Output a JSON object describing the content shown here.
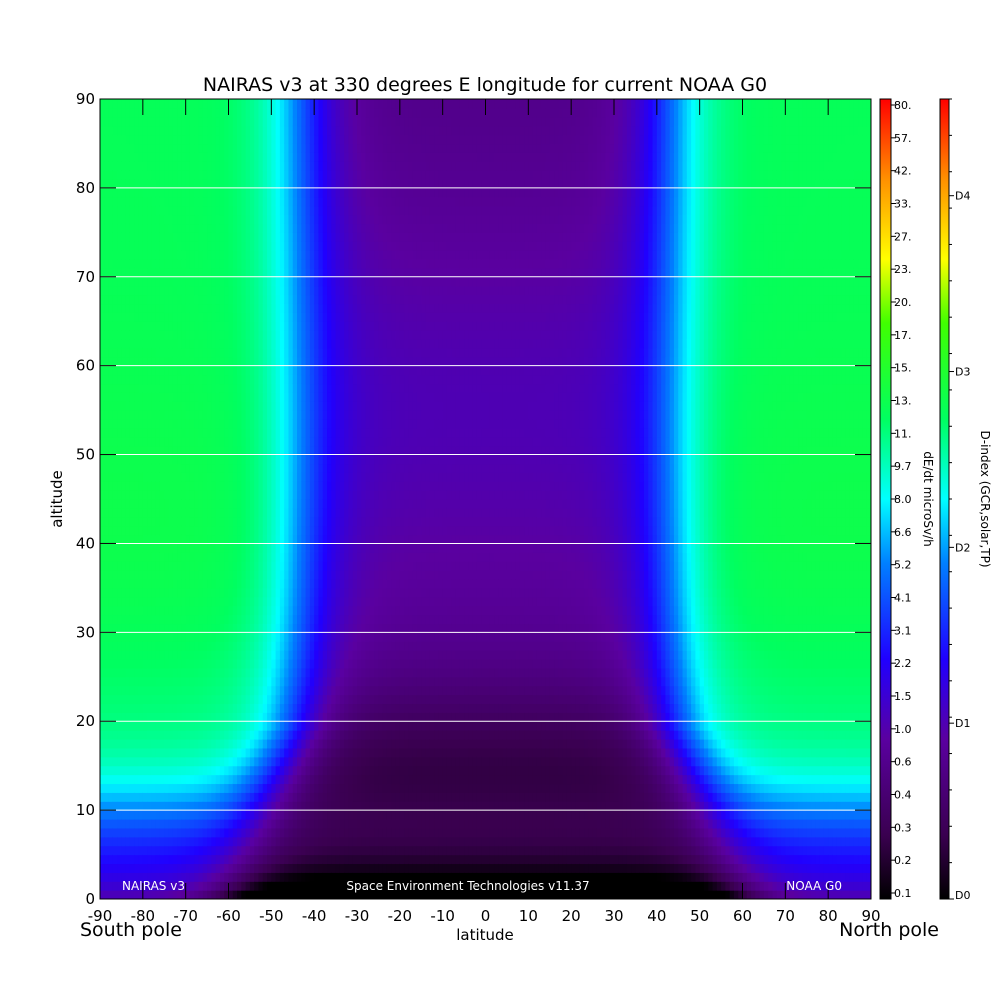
{
  "chart_data": {
    "type": "heatmap",
    "title": "NAIRAS v3 at 330 degrees E longitude for current NOAA G0",
    "xlabel": "latitude",
    "ylabel": "altitude",
    "xlim": [
      -90,
      90
    ],
    "ylim": [
      0,
      90
    ],
    "x_ticks": [
      "-90",
      "-80",
      "-70",
      "-60",
      "-50",
      "-40",
      "-30",
      "-20",
      "-10",
      "0",
      "10",
      "20",
      "30",
      "40",
      "50",
      "60",
      "70",
      "80",
      "90"
    ],
    "y_ticks": [
      "0",
      "10",
      "20",
      "30",
      "40",
      "50",
      "60",
      "70",
      "80",
      "90"
    ],
    "horizontal_gridlines_at": [
      10,
      20,
      30,
      40,
      50,
      60,
      70,
      80
    ],
    "x_end_labels": {
      "left": "South pole",
      "right": "North pole"
    },
    "footer_labels": {
      "left": "NAIRAS v3",
      "center": "Space Environment Technologies v11.37",
      "right": "NOAA G0"
    },
    "colorbar_dose": {
      "label": "dE/dt microSv/h",
      "ticks": [
        "0.1",
        "0.2",
        "0.3",
        "0.4",
        "0.6",
        "1.0",
        "1.5",
        "2.2",
        "3.1",
        "4.1",
        "5.2",
        "6.6",
        "8.0",
        "9.7",
        "11.",
        "13.",
        "15.",
        "17.",
        "20.",
        "23.",
        "27.",
        "33.",
        "42.",
        "57.",
        "80."
      ]
    },
    "colorbar_dindex": {
      "label": "D-index (GCR,solar,TP)",
      "ticks": [
        "D0",
        "D1",
        "D2",
        "D3",
        "D4"
      ],
      "tick_levels": [
        0,
        1,
        2,
        3,
        4
      ],
      "max_level": 4.55
    },
    "field_description": "dose rate (microSv/h) vs latitude and altitude; low near equator and ground, high toward poles above ~20 km",
    "colors": {
      "very_low": "#000000",
      "low": "#4a0066",
      "mid_low": "#1010ff",
      "mid": "#00ffff",
      "mid_high": "#2eff50",
      "high": "#ffff00",
      "max": "#ff0000"
    }
  }
}
